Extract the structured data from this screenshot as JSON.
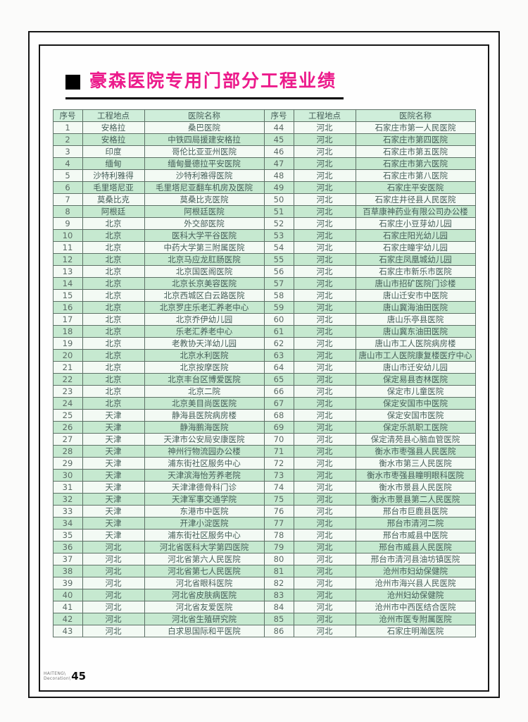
{
  "title": "豪森医院专用门部分工程业绩",
  "colors": {
    "title_accent": "#ec1a8b",
    "row_green": "#c6e9d0",
    "header_green": "#cfeeda",
    "row_white": "#f3faf4",
    "table_border": "#5d7066"
  },
  "table": {
    "headers": [
      "序号",
      "工程地点",
      "医院名称"
    ],
    "left_rows": [
      {
        "no": "1",
        "location": "安格拉",
        "name": "桑巴医院"
      },
      {
        "no": "2",
        "location": "安格拉",
        "name": "中铁四局援建安格拉"
      },
      {
        "no": "3",
        "location": "印度",
        "name": "哥伦比亚亚州医院"
      },
      {
        "no": "4",
        "location": "缅甸",
        "name": "缅甸曼德拉平安医院"
      },
      {
        "no": "5",
        "location": "沙特利雅得",
        "name": "沙特利雅得医院"
      },
      {
        "no": "6",
        "location": "毛里塔尼亚",
        "name": "毛里塔尼亚翻车机房及医院"
      },
      {
        "no": "7",
        "location": "莫桑比克",
        "name": "莫桑比克医院"
      },
      {
        "no": "8",
        "location": "阿根廷",
        "name": "阿根廷医院"
      },
      {
        "no": "9",
        "location": "北京",
        "name": "外交部医院"
      },
      {
        "no": "10",
        "location": "北京",
        "name": "医科大学平谷医院"
      },
      {
        "no": "11",
        "location": "北京",
        "name": "中药大学第三附属医院"
      },
      {
        "no": "12",
        "location": "北京",
        "name": "北京马应龙肛肠医院"
      },
      {
        "no": "13",
        "location": "北京",
        "name": "北京国医阁医院"
      },
      {
        "no": "14",
        "location": "北京",
        "name": "北京长京美容医院"
      },
      {
        "no": "15",
        "location": "北京",
        "name": "北京西城区白云路医院"
      },
      {
        "no": "16",
        "location": "北京",
        "name": "北京罗庄乐老汇养老中心"
      },
      {
        "no": "17",
        "location": "北京",
        "name": "北京乔伊幼儿园"
      },
      {
        "no": "18",
        "location": "北京",
        "name": "乐老汇养老中心"
      },
      {
        "no": "19",
        "location": "北京",
        "name": "老教协天洋幼儿园"
      },
      {
        "no": "20",
        "location": "北京",
        "name": "北京水利医院"
      },
      {
        "no": "21",
        "location": "北京",
        "name": "北京按摩医院"
      },
      {
        "no": "22",
        "location": "北京",
        "name": "北京丰台区博爱医院"
      },
      {
        "no": "23",
        "location": "北京",
        "name": "北京二院"
      },
      {
        "no": "24",
        "location": "北京",
        "name": "北京美目尚医医院"
      },
      {
        "no": "25",
        "location": "天津",
        "name": "静海县医院病房楼"
      },
      {
        "no": "26",
        "location": "天津",
        "name": "静海鹏海医院"
      },
      {
        "no": "27",
        "location": "天津",
        "name": "天津市公安局安康医院"
      },
      {
        "no": "28",
        "location": "天津",
        "name": "神州行物流园办公楼"
      },
      {
        "no": "29",
        "location": "天津",
        "name": "浦东街社区服务中心"
      },
      {
        "no": "30",
        "location": "天津",
        "name": "天津滨海怡芳养老院"
      },
      {
        "no": "31",
        "location": "天津",
        "name": "天津津德骨科门诊"
      },
      {
        "no": "32",
        "location": "天津",
        "name": "天津军事交通学院"
      },
      {
        "no": "33",
        "location": "天津",
        "name": "东港市中医院"
      },
      {
        "no": "34",
        "location": "天津",
        "name": "开津小淀医院"
      },
      {
        "no": "35",
        "location": "天津",
        "name": "浦东街社区服务中心"
      },
      {
        "no": "36",
        "location": "河北",
        "name": "河北省医科大学第四医院"
      },
      {
        "no": "37",
        "location": "河北",
        "name": "河北省第六人民医院"
      },
      {
        "no": "38",
        "location": "河北",
        "name": "河北省第七人民医院"
      },
      {
        "no": "39",
        "location": "河北",
        "name": "河北省眼科医院"
      },
      {
        "no": "40",
        "location": "河北",
        "name": "河北省皮肤病医院"
      },
      {
        "no": "41",
        "location": "河北",
        "name": "河北省友爱医院"
      },
      {
        "no": "42",
        "location": "河北",
        "name": "河北省生殖研究院"
      },
      {
        "no": "43",
        "location": "河北",
        "name": "白求恩国际和平医院"
      }
    ],
    "right_rows": [
      {
        "no": "44",
        "location": "河北",
        "name": "石家庄市第一人民医院"
      },
      {
        "no": "45",
        "location": "河北",
        "name": "石家庄市第四医院"
      },
      {
        "no": "46",
        "location": "河北",
        "name": "石家庄市第五医院"
      },
      {
        "no": "47",
        "location": "河北",
        "name": "石家庄市第六医院"
      },
      {
        "no": "48",
        "location": "河北",
        "name": "石家庄市第八医院"
      },
      {
        "no": "49",
        "location": "河北",
        "name": "石家庄平安医院"
      },
      {
        "no": "50",
        "location": "河北",
        "name": "石家庄井径县人民医院"
      },
      {
        "no": "51",
        "location": "河北",
        "name": "百草康神药业有限公司办公楼"
      },
      {
        "no": "52",
        "location": "河北",
        "name": "石家庄小豆芽幼儿园"
      },
      {
        "no": "53",
        "location": "河北",
        "name": "石家庄阳光幼儿园"
      },
      {
        "no": "54",
        "location": "河北",
        "name": "石家庄瞳宇幼儿园"
      },
      {
        "no": "55",
        "location": "河北",
        "name": "石家庄凤凰城幼儿园"
      },
      {
        "no": "56",
        "location": "河北",
        "name": "石家庄市新乐市医院"
      },
      {
        "no": "57",
        "location": "河北",
        "name": "唐山市招矿医院门诊楼"
      },
      {
        "no": "58",
        "location": "河北",
        "name": "唐山迁安市中医院"
      },
      {
        "no": "59",
        "location": "河北",
        "name": "唐山冀海油田医院"
      },
      {
        "no": "60",
        "location": "河北",
        "name": "唐山乐亭县医院"
      },
      {
        "no": "61",
        "location": "河北",
        "name": "唐山冀东油田医院"
      },
      {
        "no": "62",
        "location": "河北",
        "name": "唐山市工人医院病房楼"
      },
      {
        "no": "63",
        "location": "河北",
        "name": "唐山市工人医院康复楼医疗中心"
      },
      {
        "no": "64",
        "location": "河北",
        "name": "唐山市迁安幼儿园"
      },
      {
        "no": "65",
        "location": "河北",
        "name": "保定易县杏林医院"
      },
      {
        "no": "66",
        "location": "河北",
        "name": "保定市儿童医院"
      },
      {
        "no": "67",
        "location": "河北",
        "name": "保定安国市中医院"
      },
      {
        "no": "68",
        "location": "河北",
        "name": "保定安国市医院"
      },
      {
        "no": "69",
        "location": "河北",
        "name": "保定乐凯职工医院"
      },
      {
        "no": "70",
        "location": "河北",
        "name": "保定清苑县心脑血管医院"
      },
      {
        "no": "71",
        "location": "河北",
        "name": "衡水市枣强县人民医院"
      },
      {
        "no": "72",
        "location": "河北",
        "name": "衡水市第三人民医院"
      },
      {
        "no": "73",
        "location": "河北",
        "name": "衡水市枣强县瞳明眼科医院"
      },
      {
        "no": "74",
        "location": "河北",
        "name": "衡水市景县人民医院"
      },
      {
        "no": "75",
        "location": "河北",
        "name": "衡水市景县第二人民医院"
      },
      {
        "no": "76",
        "location": "河北",
        "name": "邢台市巨鹿县医院"
      },
      {
        "no": "77",
        "location": "河北",
        "name": "邢台市清河二院"
      },
      {
        "no": "78",
        "location": "河北",
        "name": "邢台市威县中医院"
      },
      {
        "no": "79",
        "location": "河北",
        "name": "邢台市威县人民医院"
      },
      {
        "no": "80",
        "location": "河北",
        "name": "邢台市清河县油坊镇医院"
      },
      {
        "no": "81",
        "location": "河北",
        "name": "沧州市妇幼保健院"
      },
      {
        "no": "82",
        "location": "河北",
        "name": "沧州市海兴县人民医院"
      },
      {
        "no": "83",
        "location": "河北",
        "name": "沧州妇幼保健院"
      },
      {
        "no": "84",
        "location": "河北",
        "name": "沧州市中西医结合医院"
      },
      {
        "no": "85",
        "location": "河北",
        "name": "沧州市医专附属医院"
      },
      {
        "no": "86",
        "location": "河北",
        "name": "石家庄明瀚医院"
      }
    ]
  },
  "footer": {
    "brand_line1": "HAITENG\\",
    "brand_line2": "Decoration\\",
    "page_number": "45"
  }
}
